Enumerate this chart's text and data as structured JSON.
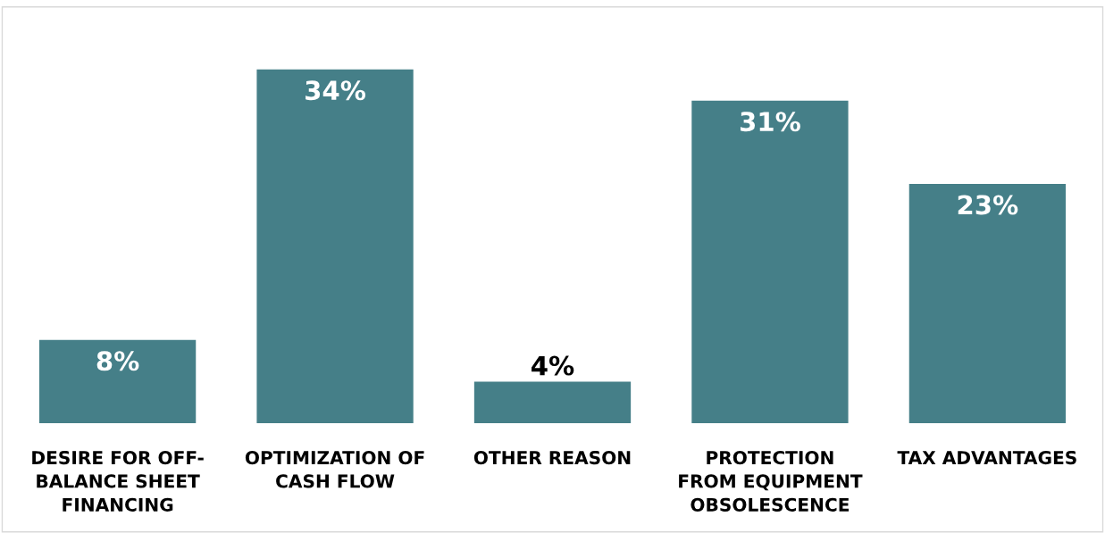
{
  "chart_data": {
    "type": "bar",
    "categories": [
      "DESIRE FOR OFF-\nBALANCE SHEET\nFINANCING",
      "OPTIMIZATION OF\nCASH FLOW",
      "OTHER REASON",
      "PROTECTION\nFROM EQUIPMENT\nOBSOLESCENCE",
      "TAX ADVANTAGES"
    ],
    "values": [
      8,
      34,
      4,
      31,
      23
    ],
    "value_labels": [
      "8%",
      "34%",
      "4%",
      "31%",
      "23%"
    ],
    "color": "#457f88",
    "grid": false,
    "legend": false
  }
}
